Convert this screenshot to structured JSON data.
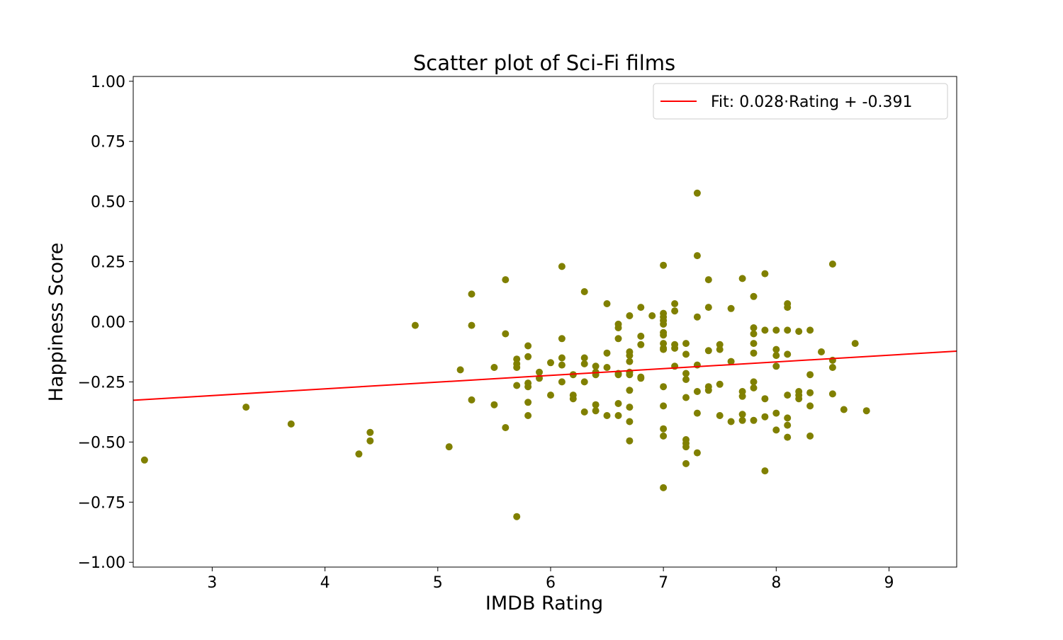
{
  "chart_data": {
    "type": "scatter",
    "title": "Scatter plot of Sci-Fi films",
    "xlabel": "IMDB Rating",
    "ylabel": "Happiness Score",
    "xlim": [
      2.3,
      9.6
    ],
    "ylim": [
      -1.02,
      1.02
    ],
    "xticks": [
      3,
      4,
      5,
      6,
      7,
      8,
      9
    ],
    "xtick_labels": [
      "3",
      "4",
      "5",
      "6",
      "7",
      "8",
      "9"
    ],
    "yticks": [
      1.0,
      0.75,
      0.5,
      0.25,
      0.0,
      -0.25,
      -0.5,
      -0.75,
      -1.0
    ],
    "ytick_labels": [
      "1.00",
      "0.75",
      "0.50",
      "0.25",
      "0.00",
      "−0.25",
      "−0.50",
      "−0.75",
      "−1.00"
    ],
    "grid": false,
    "legend_position": "top-right",
    "colors": {
      "points": "#808000",
      "fit_line": "#ff0000"
    },
    "fit": {
      "label": "Fit: 0.028·Rating + -0.391",
      "slope": 0.028,
      "intercept": -0.391
    },
    "points": [
      [
        2.4,
        -0.575
      ],
      [
        3.3,
        -0.355
      ],
      [
        3.7,
        -0.425
      ],
      [
        4.3,
        -0.55
      ],
      [
        4.4,
        -0.46
      ],
      [
        4.4,
        -0.495
      ],
      [
        4.8,
        -0.015
      ],
      [
        5.1,
        -0.52
      ],
      [
        5.2,
        -0.2
      ],
      [
        5.3,
        0.115
      ],
      [
        5.3,
        -0.015
      ],
      [
        5.3,
        -0.325
      ],
      [
        5.5,
        -0.19
      ],
      [
        5.5,
        -0.345
      ],
      [
        5.6,
        0.175
      ],
      [
        5.6,
        -0.05
      ],
      [
        5.6,
        -0.44
      ],
      [
        5.7,
        -0.155
      ],
      [
        5.7,
        -0.175
      ],
      [
        5.7,
        -0.19
      ],
      [
        5.7,
        -0.265
      ],
      [
        5.7,
        -0.81
      ],
      [
        5.8,
        -0.1
      ],
      [
        5.8,
        -0.145
      ],
      [
        5.8,
        -0.255
      ],
      [
        5.8,
        -0.27
      ],
      [
        5.8,
        -0.335
      ],
      [
        5.8,
        -0.39
      ],
      [
        5.9,
        -0.21
      ],
      [
        5.9,
        -0.235
      ],
      [
        6.0,
        -0.17
      ],
      [
        6.0,
        -0.305
      ],
      [
        6.1,
        0.23
      ],
      [
        6.1,
        -0.07
      ],
      [
        6.1,
        -0.15
      ],
      [
        6.1,
        -0.18
      ],
      [
        6.1,
        -0.25
      ],
      [
        6.2,
        -0.22
      ],
      [
        6.2,
        -0.305
      ],
      [
        6.2,
        -0.32
      ],
      [
        6.3,
        0.125
      ],
      [
        6.3,
        -0.15
      ],
      [
        6.3,
        -0.175
      ],
      [
        6.3,
        -0.25
      ],
      [
        6.3,
        -0.375
      ],
      [
        6.4,
        -0.185
      ],
      [
        6.4,
        -0.21
      ],
      [
        6.4,
        -0.22
      ],
      [
        6.4,
        -0.345
      ],
      [
        6.4,
        -0.37
      ],
      [
        6.5,
        0.075
      ],
      [
        6.5,
        -0.13
      ],
      [
        6.5,
        -0.19
      ],
      [
        6.5,
        -0.39
      ],
      [
        6.6,
        -0.01
      ],
      [
        6.6,
        -0.025
      ],
      [
        6.6,
        -0.07
      ],
      [
        6.6,
        -0.215
      ],
      [
        6.6,
        -0.22
      ],
      [
        6.6,
        -0.34
      ],
      [
        6.6,
        -0.39
      ],
      [
        6.7,
        0.025
      ],
      [
        6.7,
        -0.125
      ],
      [
        6.7,
        -0.14
      ],
      [
        6.7,
        -0.165
      ],
      [
        6.7,
        -0.21
      ],
      [
        6.7,
        -0.22
      ],
      [
        6.7,
        -0.285
      ],
      [
        6.7,
        -0.355
      ],
      [
        6.7,
        -0.415
      ],
      [
        6.7,
        -0.495
      ],
      [
        6.8,
        0.06
      ],
      [
        6.8,
        -0.06
      ],
      [
        6.8,
        -0.095
      ],
      [
        6.8,
        -0.23
      ],
      [
        6.8,
        -0.235
      ],
      [
        6.9,
        0.025
      ],
      [
        7.0,
        0.235
      ],
      [
        7.0,
        0.035
      ],
      [
        7.0,
        0.02
      ],
      [
        7.0,
        0.005
      ],
      [
        7.0,
        -0.01
      ],
      [
        7.0,
        -0.045
      ],
      [
        7.0,
        -0.055
      ],
      [
        7.0,
        -0.09
      ],
      [
        7.0,
        -0.11
      ],
      [
        7.0,
        -0.115
      ],
      [
        7.0,
        -0.27
      ],
      [
        7.0,
        -0.35
      ],
      [
        7.0,
        -0.445
      ],
      [
        7.0,
        -0.475
      ],
      [
        7.0,
        -0.69
      ],
      [
        7.1,
        0.075
      ],
      [
        7.1,
        0.045
      ],
      [
        7.1,
        -0.095
      ],
      [
        7.1,
        -0.11
      ],
      [
        7.1,
        -0.185
      ],
      [
        7.2,
        -0.09
      ],
      [
        7.2,
        -0.135
      ],
      [
        7.2,
        -0.215
      ],
      [
        7.2,
        -0.24
      ],
      [
        7.2,
        -0.315
      ],
      [
        7.2,
        -0.49
      ],
      [
        7.2,
        -0.505
      ],
      [
        7.2,
        -0.52
      ],
      [
        7.2,
        -0.59
      ],
      [
        7.3,
        0.535
      ],
      [
        7.3,
        0.275
      ],
      [
        7.3,
        0.02
      ],
      [
        7.3,
        -0.18
      ],
      [
        7.3,
        -0.29
      ],
      [
        7.3,
        -0.38
      ],
      [
        7.3,
        -0.545
      ],
      [
        7.4,
        0.175
      ],
      [
        7.4,
        0.06
      ],
      [
        7.4,
        -0.12
      ],
      [
        7.4,
        -0.27
      ],
      [
        7.4,
        -0.285
      ],
      [
        7.5,
        -0.095
      ],
      [
        7.5,
        -0.115
      ],
      [
        7.5,
        -0.26
      ],
      [
        7.5,
        -0.39
      ],
      [
        7.6,
        0.055
      ],
      [
        7.6,
        -0.165
      ],
      [
        7.6,
        -0.415
      ],
      [
        7.7,
        0.18
      ],
      [
        7.7,
        -0.29
      ],
      [
        7.7,
        -0.31
      ],
      [
        7.7,
        -0.385
      ],
      [
        7.7,
        -0.41
      ],
      [
        7.8,
        0.105
      ],
      [
        7.8,
        -0.025
      ],
      [
        7.8,
        -0.05
      ],
      [
        7.8,
        -0.09
      ],
      [
        7.8,
        -0.13
      ],
      [
        7.8,
        -0.25
      ],
      [
        7.8,
        -0.275
      ],
      [
        7.8,
        -0.41
      ],
      [
        7.9,
        0.2
      ],
      [
        7.9,
        -0.035
      ],
      [
        7.9,
        -0.32
      ],
      [
        7.9,
        -0.395
      ],
      [
        7.9,
        -0.62
      ],
      [
        8.0,
        -0.035
      ],
      [
        8.0,
        -0.115
      ],
      [
        8.0,
        -0.14
      ],
      [
        8.0,
        -0.185
      ],
      [
        8.0,
        -0.38
      ],
      [
        8.0,
        -0.45
      ],
      [
        8.1,
        0.075
      ],
      [
        8.1,
        0.06
      ],
      [
        8.1,
        -0.035
      ],
      [
        8.1,
        -0.135
      ],
      [
        8.1,
        -0.305
      ],
      [
        8.1,
        -0.4
      ],
      [
        8.1,
        -0.43
      ],
      [
        8.1,
        -0.48
      ],
      [
        8.2,
        -0.04
      ],
      [
        8.2,
        -0.29
      ],
      [
        8.2,
        -0.305
      ],
      [
        8.2,
        -0.32
      ],
      [
        8.3,
        -0.035
      ],
      [
        8.3,
        -0.22
      ],
      [
        8.3,
        -0.295
      ],
      [
        8.3,
        -0.35
      ],
      [
        8.3,
        -0.475
      ],
      [
        8.4,
        -0.125
      ],
      [
        8.5,
        0.24
      ],
      [
        8.5,
        -0.16
      ],
      [
        8.5,
        -0.19
      ],
      [
        8.5,
        -0.3
      ],
      [
        8.6,
        -0.365
      ],
      [
        8.7,
        -0.09
      ],
      [
        8.8,
        -0.37
      ]
    ]
  }
}
